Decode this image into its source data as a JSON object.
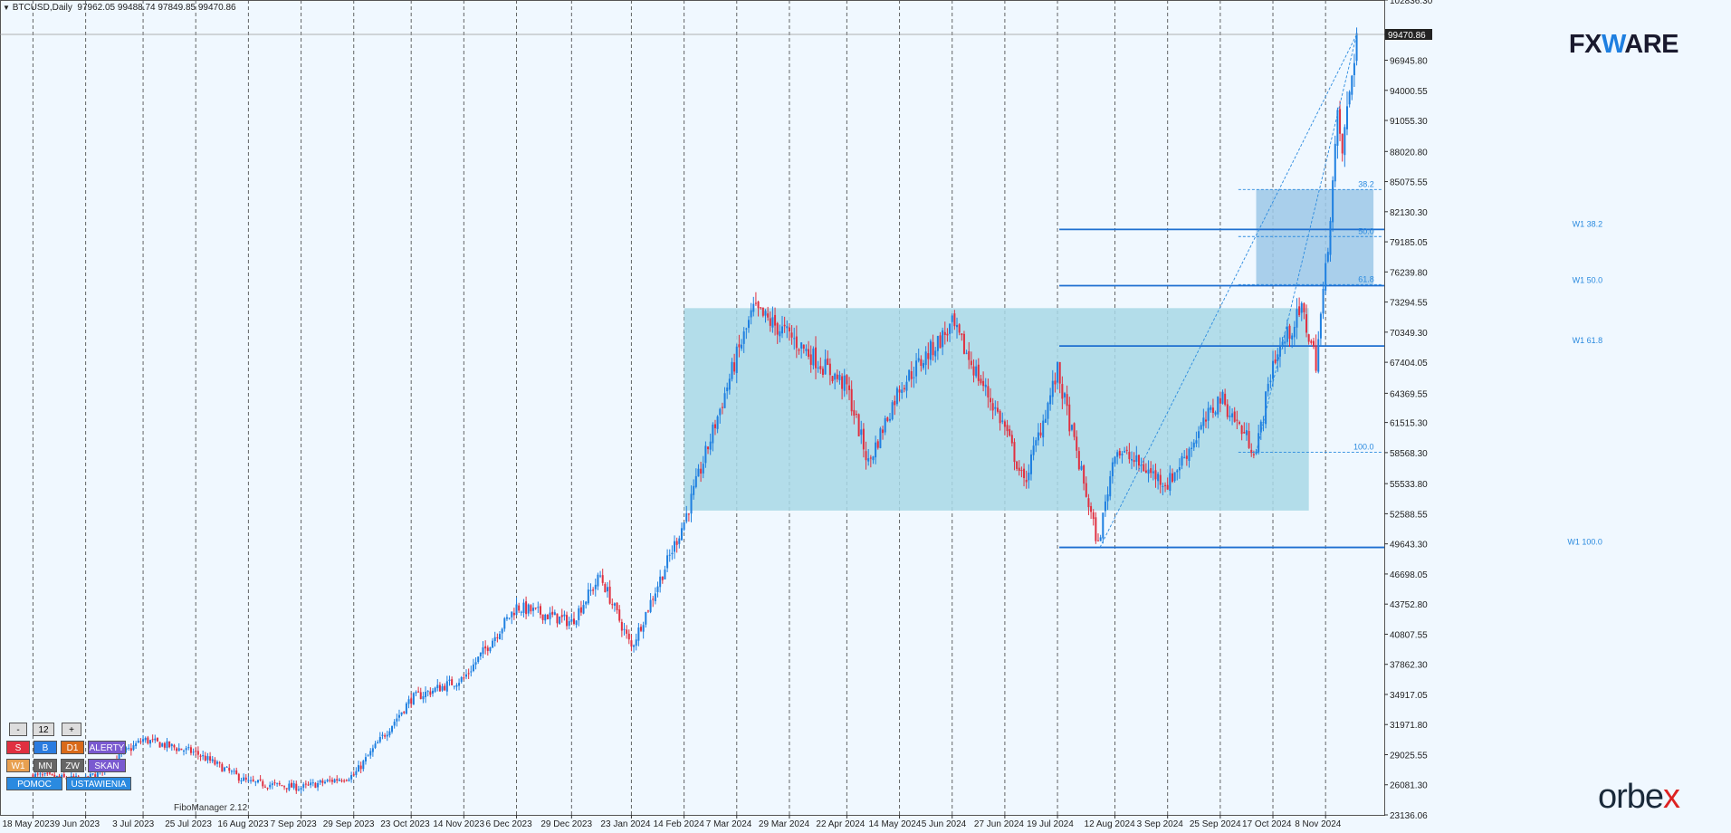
{
  "header": {
    "symbol": "BTCUSD,Daily",
    "ohlc": "97962.05 99488.74 97849.85 99470.86"
  },
  "branding": {
    "fx_prefix": "FX",
    "fx_mid": "W",
    "fx_suffix": "ARE",
    "orbex_pre": "orbe",
    "orbex_x": "x"
  },
  "panel": {
    "minus": "-",
    "count": "12",
    "plus": "+",
    "s": "S",
    "b": "B",
    "d1": "D1",
    "alerty": "ALERTY",
    "w1": "W1",
    "mn": "MN",
    "zw": "ZW",
    "skan": "SKAN",
    "pomoc": "POMOC",
    "ustawienia": "USTAWIENIA",
    "fibo_label": "FiboManager 2.12"
  },
  "colors": {
    "background": "#f0f8ff",
    "bull": "#1e7fe0",
    "bear": "#e03040",
    "zone_big": "#a8d8e6",
    "zone_small": "#9cc8e8",
    "level_line": "#1e6fd0",
    "fibo_text": "#2a8adf"
  },
  "chart_data": {
    "type": "candlestick",
    "title": "BTCUSD,Daily",
    "symbol": "BTCUSD",
    "timeframe": "Daily",
    "ohlc_last": {
      "open": 97962.05,
      "high": 99488.74,
      "low": 97849.85,
      "close": 99470.86
    },
    "last_price_label": "99470.86",
    "ylim": [
      23136.06,
      102836.3
    ],
    "y_ticks": [
      "102836.30",
      "99470.86",
      "96945.80",
      "94000.55",
      "91055.30",
      "88020.80",
      "85075.55",
      "82130.30",
      "79185.05",
      "76239.80",
      "73294.55",
      "70349.30",
      "67404.05",
      "64369.55",
      "61515.30",
      "58568.30",
      "55533.80",
      "52588.55",
      "49643.30",
      "46698.05",
      "43752.80",
      "40807.55",
      "37862.30",
      "34917.05",
      "31971.80",
      "29025.55",
      "26081.30",
      "23136.06"
    ],
    "x_labels": [
      "18 May 2023",
      "9 Jun 2023",
      "3 Jul 2023",
      "25 Jul 2023",
      "16 Aug 2023",
      "7 Sep 2023",
      "29 Sep 2023",
      "23 Oct 2023",
      "14 Nov 2023",
      "6 Dec 2023",
      "29 Dec 2023",
      "23 Jan 2024",
      "14 Feb 2024",
      "7 Mar 2024",
      "29 Mar 2024",
      "22 Apr 2024",
      "14 May 2024",
      "5 Jun 2024",
      "27 Jun 2024",
      "19 Jul 2024",
      "12 Aug 2024",
      "3 Sep 2024",
      "25 Sep 2024",
      "17 Oct 2024",
      "8 Nov 2024"
    ],
    "price_path": [
      [
        "18 May 2023",
        27000
      ],
      [
        "9 Jun 2023",
        26500
      ],
      [
        "3 Jul 2023",
        30500
      ],
      [
        "25 Jul 2023",
        29200
      ],
      [
        "16 Aug 2023",
        26300
      ],
      [
        "7 Sep 2023",
        25800
      ],
      [
        "29 Sep 2023",
        27000
      ],
      [
        "23 Oct 2023",
        34500
      ],
      [
        "14 Nov 2023",
        36500
      ],
      [
        "6 Dec 2023",
        43500
      ],
      [
        "29 Dec 2023",
        42000
      ],
      [
        "10 Jan 2024",
        46500
      ],
      [
        "23 Jan 2024",
        39500
      ],
      [
        "14 Feb 2024",
        51800
      ],
      [
        "7 Mar 2024",
        68000
      ],
      [
        "14 Mar 2024",
        72500
      ],
      [
        "29 Mar 2024",
        70000
      ],
      [
        "22 Apr 2024",
        65000
      ],
      [
        "1 May 2024",
        57500
      ],
      [
        "14 May 2024",
        65000
      ],
      [
        "5 Jun 2024",
        71000
      ],
      [
        "27 Jun 2024",
        61000
      ],
      [
        "5 Jul 2024",
        55500
      ],
      [
        "19 Jul 2024",
        66500
      ],
      [
        "5 Aug 2024",
        49500
      ],
      [
        "12 Aug 2024",
        59000
      ],
      [
        "3 Sep 2024",
        55500
      ],
      [
        "25 Sep 2024",
        64000
      ],
      [
        "10 Oct 2024",
        58600
      ],
      [
        "17 Oct 2024",
        67500
      ],
      [
        "29 Oct 2024",
        72500
      ],
      [
        "4 Nov 2024",
        67500
      ],
      [
        "8 Nov 2024",
        76300
      ],
      [
        "13 Nov 2024",
        91000
      ],
      [
        "15 Nov 2024",
        88000
      ],
      [
        "21 Nov 2024",
        99470
      ]
    ],
    "zones": [
      {
        "name": "range",
        "from": "14 Feb 2024",
        "to": "1 Nov 2024",
        "low": 52900,
        "high": 72700
      },
      {
        "name": "target",
        "from": "10 Oct 2024",
        "to": "28 Nov 2024",
        "low": 75000,
        "high": 84300
      }
    ],
    "levels": [
      {
        "label": "W1 38.2",
        "price": 80400
      },
      {
        "label": "W1 50.0",
        "price": 74900
      },
      {
        "label": "W1 61.8",
        "price": 69000
      },
      {
        "label": "W1 100.0",
        "price": 49300
      }
    ],
    "fibo_levels": [
      {
        "label": "38.2",
        "price": 84300
      },
      {
        "label": "50.0",
        "price": 79700
      },
      {
        "label": "61.8",
        "price": 75000
      },
      {
        "label": "100.0",
        "price": 58600
      }
    ],
    "grid": true
  }
}
